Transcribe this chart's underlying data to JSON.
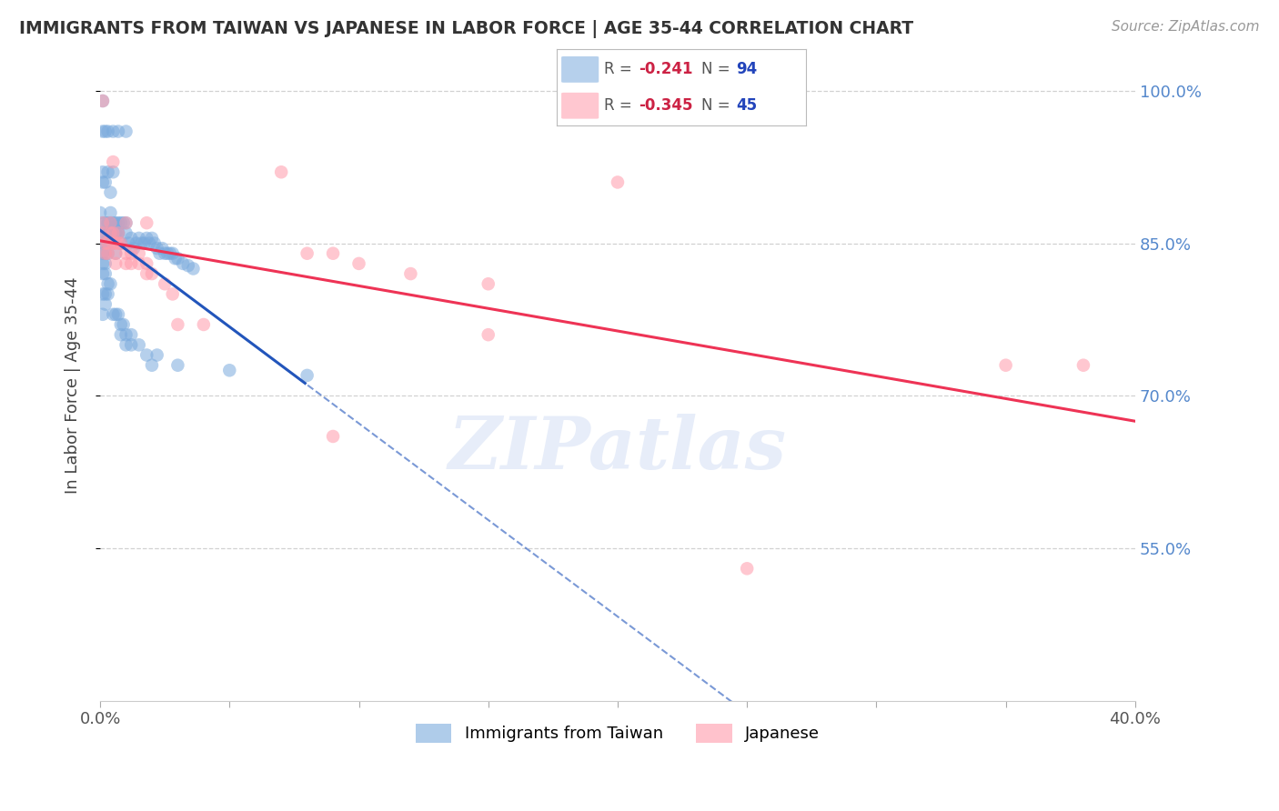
{
  "title": "IMMIGRANTS FROM TAIWAN VS JAPANESE IN LABOR FORCE | AGE 35-44 CORRELATION CHART",
  "source": "Source: ZipAtlas.com",
  "ylabel": "In Labor Force | Age 35-44",
  "xlim": [
    0.0,
    0.4
  ],
  "ylim": [
    0.4,
    1.02
  ],
  "yticks": [
    0.55,
    0.7,
    0.85,
    1.0
  ],
  "ytick_labels": [
    "55.0%",
    "70.0%",
    "85.0%",
    "100.0%"
  ],
  "xticks": [
    0.0,
    0.05,
    0.1,
    0.15,
    0.2,
    0.25,
    0.3,
    0.35,
    0.4
  ],
  "xtick_labels": [
    "0.0%",
    "",
    "",
    "",
    "",
    "",
    "",
    "",
    "40.0%"
  ],
  "taiwan_R": -0.241,
  "taiwan_N": 94,
  "japanese_R": -0.345,
  "japanese_N": 45,
  "taiwan_color": "#7aaadd",
  "japanese_color": "#ff9aaa",
  "taiwan_line_color": "#2255bb",
  "japanese_line_color": "#ee3355",
  "taiwan_x": [
    0.0,
    0.001,
    0.001,
    0.001,
    0.001,
    0.001,
    0.001,
    0.001,
    0.002,
    0.002,
    0.002,
    0.002,
    0.002,
    0.002,
    0.003,
    0.003,
    0.003,
    0.003,
    0.004,
    0.004,
    0.004,
    0.005,
    0.005,
    0.005,
    0.006,
    0.006,
    0.007,
    0.007,
    0.008,
    0.008,
    0.009,
    0.01,
    0.01,
    0.011,
    0.012,
    0.013,
    0.014,
    0.015,
    0.016,
    0.017,
    0.018,
    0.019,
    0.02,
    0.021,
    0.022,
    0.023,
    0.024,
    0.025,
    0.026,
    0.027,
    0.028,
    0.029,
    0.03,
    0.032,
    0.034,
    0.036,
    0.001,
    0.001,
    0.001,
    0.002,
    0.002,
    0.003,
    0.003,
    0.004,
    0.005,
    0.006,
    0.007,
    0.008,
    0.01,
    0.012,
    0.001,
    0.002,
    0.003,
    0.004,
    0.005,
    0.006,
    0.007,
    0.008,
    0.009,
    0.01,
    0.012,
    0.015,
    0.018,
    0.022,
    0.001,
    0.002,
    0.003,
    0.005,
    0.007,
    0.01,
    0.02,
    0.03,
    0.05,
    0.08
  ],
  "taiwan_y": [
    0.88,
    0.99,
    0.87,
    0.86,
    0.85,
    0.84,
    0.83,
    0.82,
    0.87,
    0.86,
    0.85,
    0.84,
    0.83,
    0.82,
    0.87,
    0.86,
    0.85,
    0.84,
    0.88,
    0.87,
    0.86,
    0.87,
    0.86,
    0.85,
    0.87,
    0.86,
    0.87,
    0.86,
    0.87,
    0.85,
    0.87,
    0.87,
    0.86,
    0.85,
    0.855,
    0.845,
    0.85,
    0.855,
    0.85,
    0.85,
    0.855,
    0.85,
    0.855,
    0.85,
    0.845,
    0.84,
    0.845,
    0.84,
    0.84,
    0.84,
    0.84,
    0.835,
    0.835,
    0.83,
    0.828,
    0.825,
    0.92,
    0.91,
    0.8,
    0.91,
    0.8,
    0.92,
    0.81,
    0.9,
    0.92,
    0.84,
    0.86,
    0.76,
    0.75,
    0.76,
    0.78,
    0.79,
    0.8,
    0.81,
    0.78,
    0.78,
    0.78,
    0.77,
    0.77,
    0.76,
    0.75,
    0.75,
    0.74,
    0.74,
    0.96,
    0.96,
    0.96,
    0.96,
    0.96,
    0.96,
    0.73,
    0.73,
    0.725,
    0.72
  ],
  "japanese_x": [
    0.001,
    0.001,
    0.001,
    0.002,
    0.002,
    0.003,
    0.003,
    0.004,
    0.004,
    0.005,
    0.005,
    0.006,
    0.006,
    0.006,
    0.007,
    0.007,
    0.008,
    0.01,
    0.01,
    0.012,
    0.012,
    0.015,
    0.015,
    0.018,
    0.018,
    0.02,
    0.025,
    0.028,
    0.005,
    0.01,
    0.018,
    0.07,
    0.2,
    0.08,
    0.09,
    0.1,
    0.12,
    0.15,
    0.03,
    0.04,
    0.09,
    0.15,
    0.35,
    0.38,
    0.25
  ],
  "japanese_y": [
    0.99,
    0.87,
    0.86,
    0.85,
    0.84,
    0.85,
    0.84,
    0.87,
    0.86,
    0.86,
    0.85,
    0.85,
    0.84,
    0.83,
    0.86,
    0.85,
    0.85,
    0.84,
    0.83,
    0.84,
    0.83,
    0.84,
    0.83,
    0.83,
    0.82,
    0.82,
    0.81,
    0.8,
    0.93,
    0.87,
    0.87,
    0.92,
    0.91,
    0.84,
    0.84,
    0.83,
    0.82,
    0.81,
    0.77,
    0.77,
    0.66,
    0.76,
    0.73,
    0.73,
    0.53
  ],
  "background_color": "#ffffff",
  "grid_color": "#cccccc",
  "title_color": "#333333",
  "axis_label_color": "#444444",
  "right_tick_color": "#5588cc",
  "watermark_text": "ZIPatlas",
  "watermark_color": "#bbccee",
  "watermark_alpha": 0.35
}
